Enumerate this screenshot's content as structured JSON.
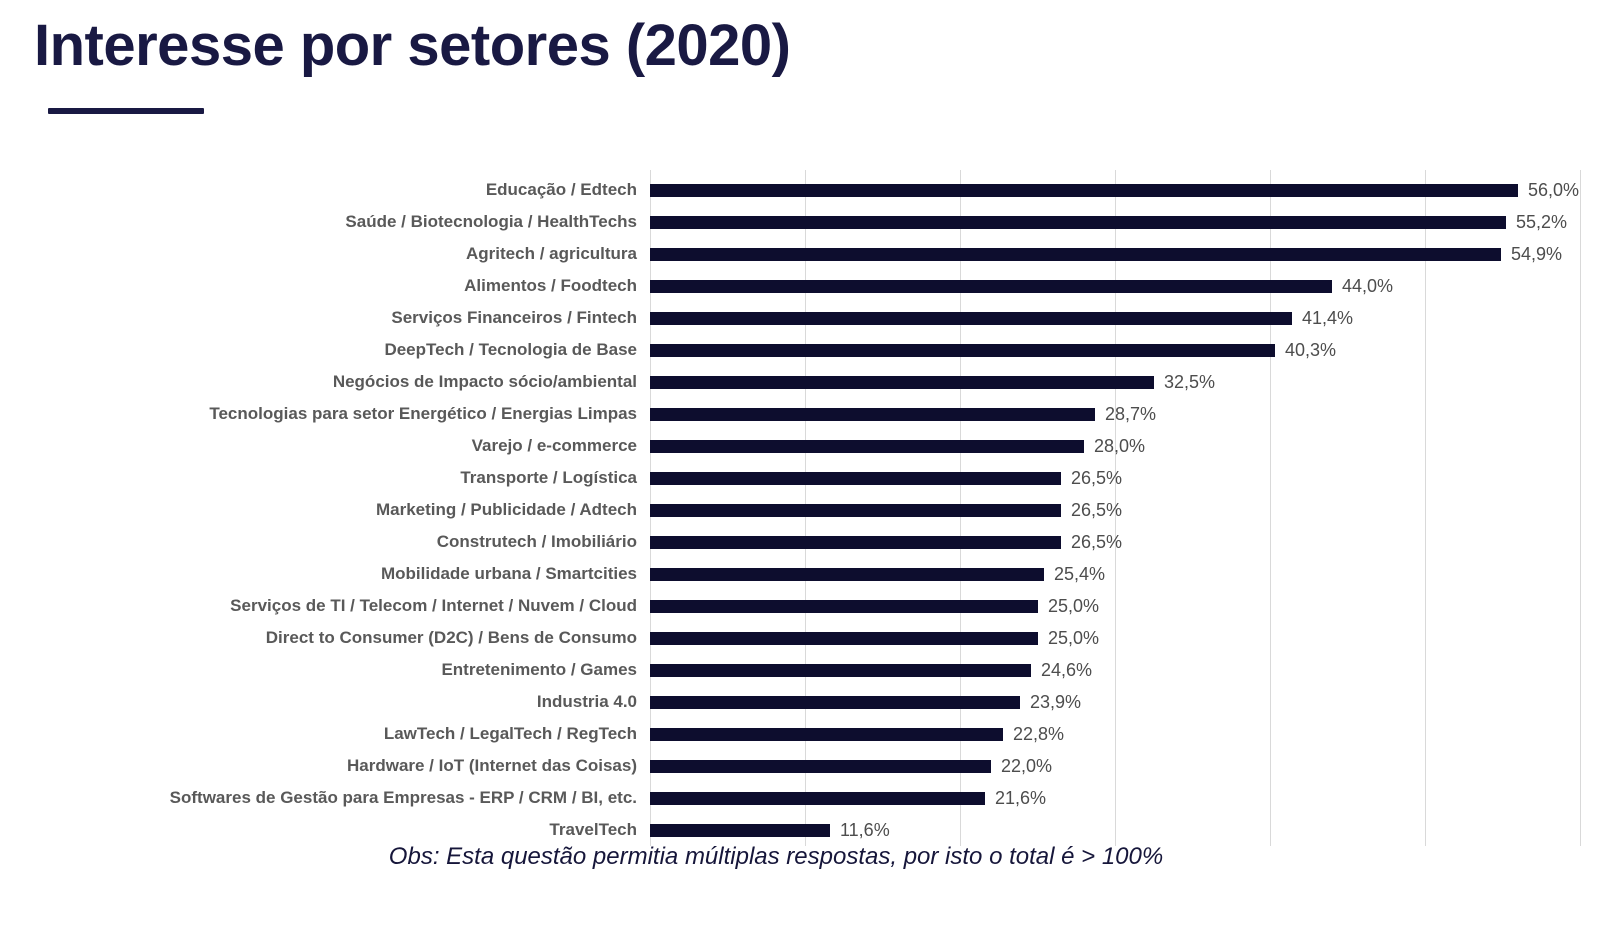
{
  "header": {
    "title": "Interesse por setores (2020)"
  },
  "footnote": {
    "text": "Obs: Esta questão permitia múltiplas respostas, por isto o total é > 100%"
  },
  "colors": {
    "bar": "#0d0d2e",
    "title": "#191943",
    "category_label": "#595959",
    "value_label": "#4d4d4d",
    "gridline": "#d9d9d9"
  },
  "chart_data": {
    "type": "bar",
    "orientation": "horizontal",
    "title": "Interesse por setores (2020)",
    "xlabel": "",
    "ylabel": "",
    "xlim": [
      0,
      60
    ],
    "gridline_step": 10,
    "grid": "vertical-only",
    "legend": "none",
    "value_format": "percent-comma-decimal",
    "categories": [
      "Educação / Edtech",
      "Saúde / Biotecnologia / HealthTechs",
      "Agritech / agricultura",
      "Alimentos / Foodtech",
      "Serviços Financeiros / Fintech",
      "DeepTech / Tecnologia de Base",
      "Negócios de Impacto sócio/ambiental",
      "Tecnologias para setor Energético / Energias Limpas",
      "Varejo / e-commerce",
      "Transporte / Logística",
      "Marketing / Publicidade / Adtech",
      "Construtech / Imobiliário",
      "Mobilidade urbana / Smartcities",
      "Serviços de TI / Telecom / Internet / Nuvem / Cloud",
      "Direct to Consumer (D2C) / Bens de Consumo",
      "Entretenimento / Games",
      "Industria 4.0",
      "LawTech / LegalTech / RegTech",
      "Hardware / IoT (Internet das Coisas)",
      "Softwares de Gestão para Empresas - ERP / CRM / BI, etc.",
      "TravelTech"
    ],
    "values": [
      56.0,
      55.2,
      54.9,
      44.0,
      41.4,
      40.3,
      32.5,
      28.7,
      28.0,
      26.5,
      26.5,
      26.5,
      25.4,
      25.0,
      25.0,
      24.6,
      23.9,
      22.8,
      22.0,
      21.6,
      11.6
    ],
    "value_labels": [
      "56,0%",
      "55,2%",
      "54,9%",
      "44,0%",
      "41,4%",
      "40,3%",
      "32,5%",
      "28,7%",
      "28,0%",
      "26,5%",
      "26,5%",
      "26,5%",
      "25,4%",
      "25,0%",
      "25,0%",
      "24,6%",
      "23,9%",
      "22,8%",
      "22,0%",
      "21,6%",
      "11,6%"
    ]
  }
}
